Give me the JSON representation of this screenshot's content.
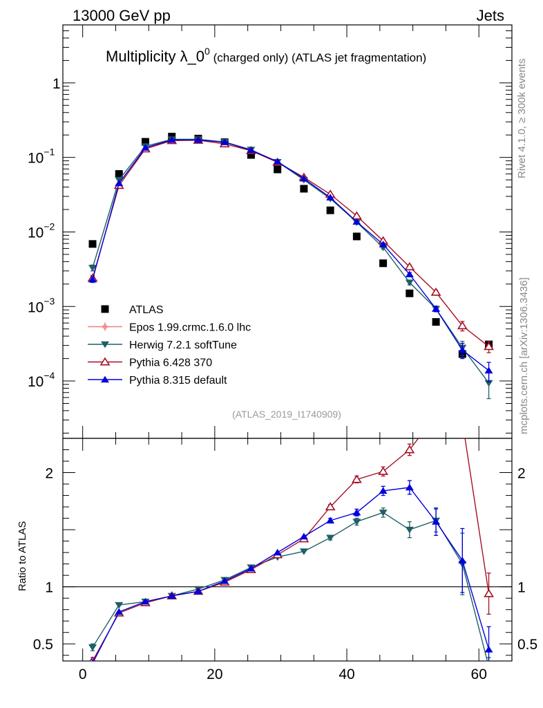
{
  "header": {
    "left": "13000 GeV pp",
    "right": "Jets"
  },
  "side_labels": {
    "rivet": "Rivet 4.1.0, ≥ 300k events",
    "mcplots": "mcplots.cern.ch [arXiv:1306.3436]"
  },
  "title": {
    "main": "Multiplicity λ_0",
    "sup": "0",
    "rest": " (charged only) (ATLAS jet fragmentation)"
  },
  "analysis_id": "(ATLAS_2019_I1740909)",
  "colors": {
    "atlas": "#000000",
    "epos": "#f08080",
    "herwig": "#1f5f66",
    "pythia6": "#a50f24",
    "pythia8": "#0000dd"
  },
  "chart_data": [
    {
      "type": "scatter",
      "panel": "main",
      "yscale": "log",
      "xlim": [
        -3,
        65
      ],
      "ylim": [
        1.7e-05,
        6
      ],
      "yticks": [
        {
          "value": 1,
          "base": "1",
          "exp": ""
        },
        {
          "value": 0.1,
          "base": "10",
          "exp": "−1"
        },
        {
          "value": 0.01,
          "base": "10",
          "exp": "−2"
        },
        {
          "value": 0.001,
          "base": "10",
          "exp": "−3"
        },
        {
          "value": 0.0001,
          "base": "10",
          "exp": "−4"
        }
      ],
      "x": [
        1.5,
        5.5,
        9.5,
        13.5,
        17.5,
        21.5,
        25.5,
        29.5,
        33.5,
        37.5,
        41.5,
        45.5,
        49.5,
        53.5,
        57.5,
        61.5
      ],
      "series": [
        {
          "name": "ATLAS",
          "key": "atlas",
          "marker": "square",
          "values": [
            0.0069,
            0.06,
            0.162,
            0.19,
            0.179,
            0.16,
            0.108,
            0.069,
            0.038,
            0.0195,
            0.0087,
            0.0038,
            0.0015,
            0.00062,
            0.00023,
            0.00031
          ]
        },
        {
          "name": "Epos 1.99.crmc.1.6.0 lhc",
          "key": "epos",
          "marker": "cross",
          "values": []
        },
        {
          "name": "Herwig 7.2.1 softTune",
          "key": "herwig",
          "marker": "tri-down",
          "values": [
            0.0033,
            0.05,
            0.141,
            0.175,
            0.175,
            0.161,
            0.127,
            0.087,
            0.05,
            0.028,
            0.0135,
            0.0062,
            0.0021,
            0.00093,
            0.00028,
            9.4e-05
          ],
          "err": [
            0.0003,
            0.001,
            0.002,
            0.002,
            0.002,
            0.002,
            0.002,
            0.002,
            0.001,
            0.0008,
            0.0005,
            0.0003,
            0.00015,
            8e-05,
            6e-05,
            3.6e-05
          ]
        },
        {
          "name": "Pythia 6.428 370",
          "key": "pythia6",
          "marker": "tri-up-open",
          "values": [
            0.0024,
            0.042,
            0.13,
            0.168,
            0.17,
            0.152,
            0.123,
            0.086,
            0.054,
            0.032,
            0.0164,
            0.0076,
            0.0034,
            0.00155,
            0.00055,
            0.00029
          ],
          "err": [
            0.0002,
            0.001,
            0.002,
            0.002,
            0.002,
            0.002,
            0.002,
            0.002,
            0.001,
            0.0008,
            0.0005,
            0.0003,
            0.0002,
            0.0001,
            8e-05,
            5e-05
          ]
        },
        {
          "name": "Pythia 8.315 default",
          "key": "pythia8",
          "marker": "tri-up",
          "values": [
            0.0023,
            0.045,
            0.135,
            0.172,
            0.172,
            0.16,
            0.125,
            0.088,
            0.052,
            0.029,
            0.0137,
            0.0068,
            0.0027,
            0.00093,
            0.00026,
            0.000138
          ],
          "err": [
            0.0002,
            0.001,
            0.002,
            0.002,
            0.002,
            0.002,
            0.002,
            0.002,
            0.001,
            0.0008,
            0.0005,
            0.0003,
            0.00015,
            8e-05,
            6e-05,
            4e-05
          ]
        }
      ]
    },
    {
      "type": "line",
      "panel": "ratio",
      "ylabel": "Ratio to ATLAS",
      "xlim": [
        -3,
        65
      ],
      "ylim": [
        0.35,
        2.3
      ],
      "yticks": [
        {
          "value": 0.5,
          "label": "0.5"
        },
        {
          "value": 1,
          "label": "1"
        },
        {
          "value": 2,
          "label": "2"
        }
      ],
      "xticks": [
        {
          "value": 0,
          "label": "0"
        },
        {
          "value": 20,
          "label": "20"
        },
        {
          "value": 40,
          "label": "40"
        },
        {
          "value": 60,
          "label": "60"
        }
      ],
      "x": [
        1.5,
        5.5,
        9.5,
        13.5,
        17.5,
        21.5,
        25.5,
        29.5,
        33.5,
        37.5,
        41.5,
        45.5,
        49.5,
        53.5,
        57.5,
        61.5
      ],
      "series": [
        {
          "name": "Herwig 7.2.1 softTune",
          "key": "herwig",
          "marker": "tri-down",
          "values": [
            0.47,
            0.84,
            0.87,
            0.92,
            0.98,
            1.06,
            1.17,
            1.26,
            1.31,
            1.43,
            1.57,
            1.65,
            1.5,
            1.58,
            1.2,
            0.3
          ],
          "err": [
            0.03,
            0.01,
            0.01,
            0.01,
            0.01,
            0.01,
            0.01,
            0.01,
            0.01,
            0.02,
            0.03,
            0.04,
            0.07,
            0.1,
            0.27,
            0.08
          ]
        },
        {
          "name": "Pythia 6.428 370",
          "key": "pythia6",
          "marker": "tri-up-open",
          "values": [
            0.35,
            0.77,
            0.86,
            0.92,
            0.96,
            1.04,
            1.15,
            1.28,
            1.42,
            1.7,
            1.94,
            2.01,
            2.2,
            2.5,
            2.45,
            0.94
          ],
          "err": [
            0.03,
            0.01,
            0.01,
            0.01,
            0.01,
            0.01,
            0.01,
            0.01,
            0.01,
            0.02,
            0.03,
            0.04,
            0.05,
            0.08,
            0.15,
            0.18
          ]
        },
        {
          "name": "Pythia 8.315 default",
          "key": "pythia8",
          "marker": "tri-up",
          "values": [
            0.33,
            0.78,
            0.87,
            0.92,
            0.96,
            1.05,
            1.16,
            1.3,
            1.44,
            1.58,
            1.65,
            1.84,
            1.87,
            1.57,
            1.23,
            0.45
          ],
          "err": [
            0.03,
            0.01,
            0.01,
            0.01,
            0.01,
            0.01,
            0.01,
            0.01,
            0.01,
            0.02,
            0.03,
            0.04,
            0.06,
            0.12,
            0.28,
            0.2
          ]
        }
      ]
    }
  ]
}
